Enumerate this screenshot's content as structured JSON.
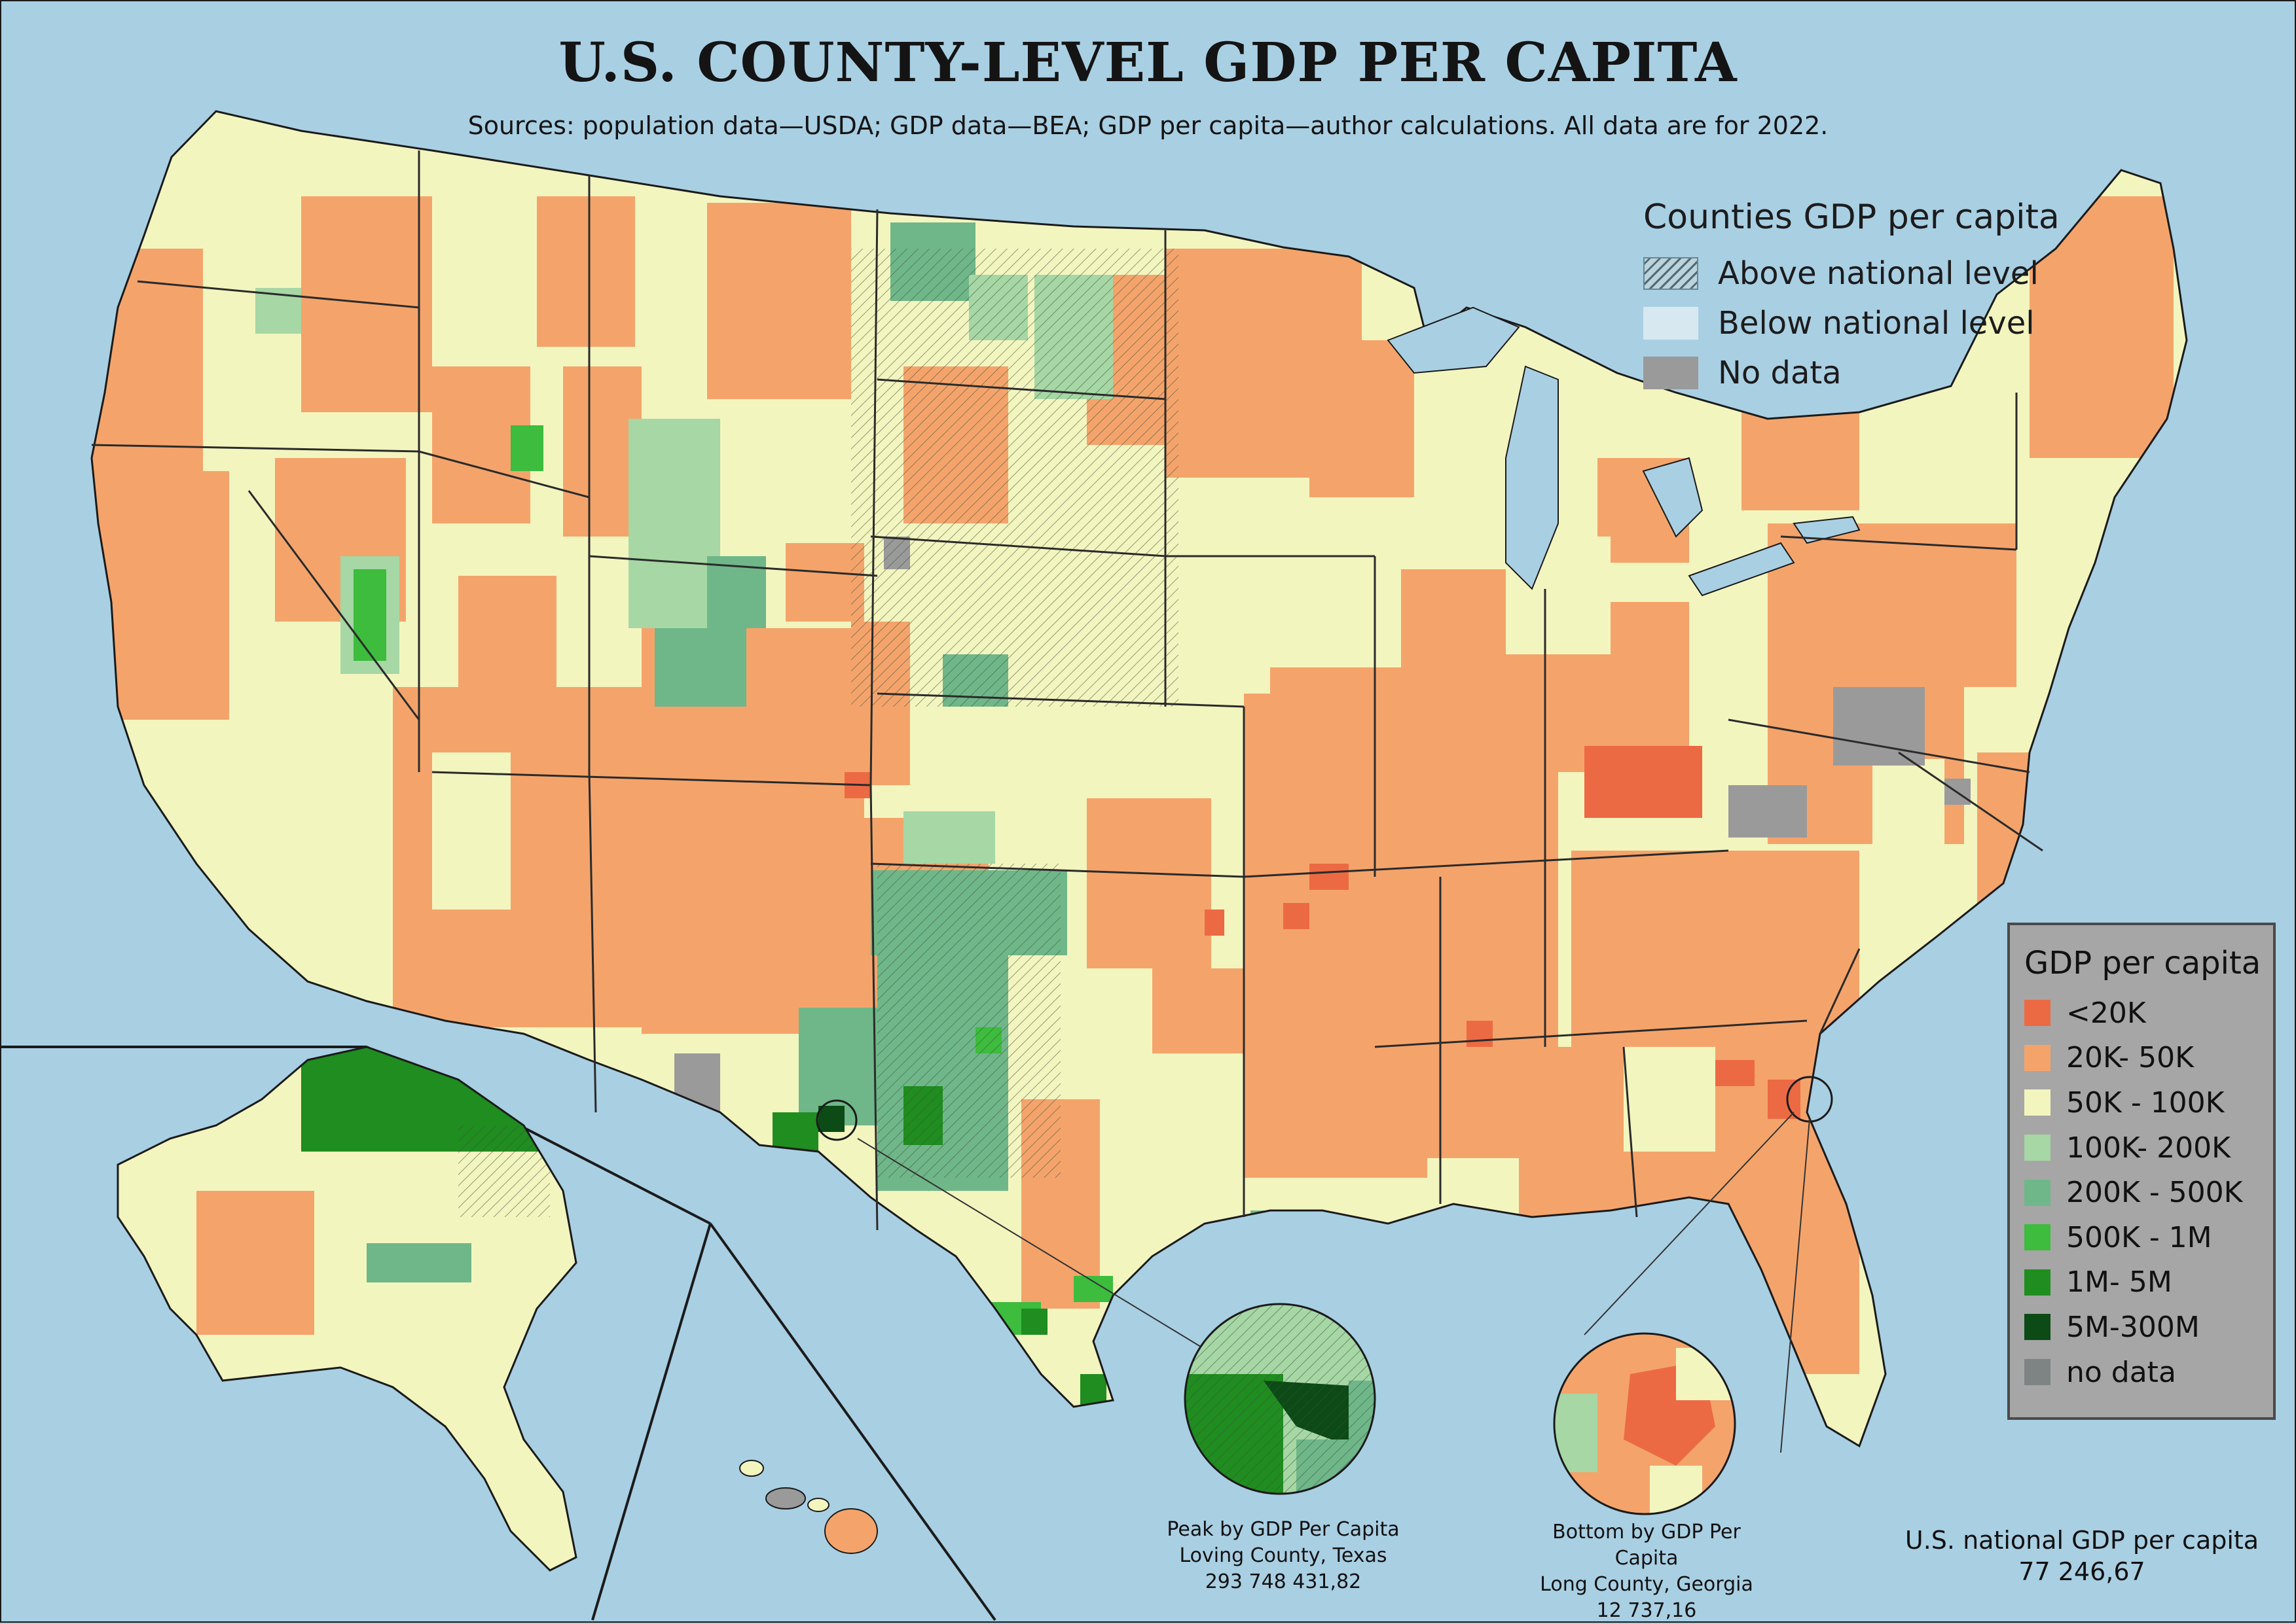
{
  "title": "U.S. COUNTY-LEVEL GDP PER CAPITA",
  "subtitle": "Sources: population data—USDA; GDP data—BEA; GDP per capita—author calculations. All data are for 2022.",
  "top_legend": {
    "title": "Counties GDP per capita",
    "items": [
      {
        "label": "Above national level",
        "pattern": "hatched"
      },
      {
        "label": "Below national level",
        "pattern": "plain"
      },
      {
        "label": "No data",
        "color": "#9a9a9a"
      }
    ]
  },
  "gdp_legend": {
    "title": "GDP per capita",
    "items": [
      {
        "label": "<20K",
        "color": "#ec6a43"
      },
      {
        "label": "20K- 50K",
        "color": "#f4a46b"
      },
      {
        "label": "50K - 100K",
        "color": "#f3f5bf"
      },
      {
        "label": "100K- 200K",
        "color": "#a6d7a5"
      },
      {
        "label": "200K - 500K",
        "color": "#6fb789"
      },
      {
        "label": "500K - 1M",
        "color": "#3dbc3d"
      },
      {
        "label": "1M- 5M",
        "color": "#1f8d1f"
      },
      {
        "label": "5M-300M",
        "color": "#0c4a16"
      },
      {
        "label": "no data",
        "color": "#7d8483"
      }
    ]
  },
  "peak": {
    "heading": "Peak by GDP Per Capita",
    "county": "Loving County, Texas",
    "value": "293 748 431,82"
  },
  "bottom": {
    "heading": "Bottom by GDP Per Capita",
    "county": "Long County, Georgia",
    "value": "12 737,16"
  },
  "national": {
    "label": "U.S. national GDP per capita",
    "value": "77 246,67"
  },
  "colors": {
    "water": "#a9cfe3",
    "border": "#1b1b1b"
  }
}
